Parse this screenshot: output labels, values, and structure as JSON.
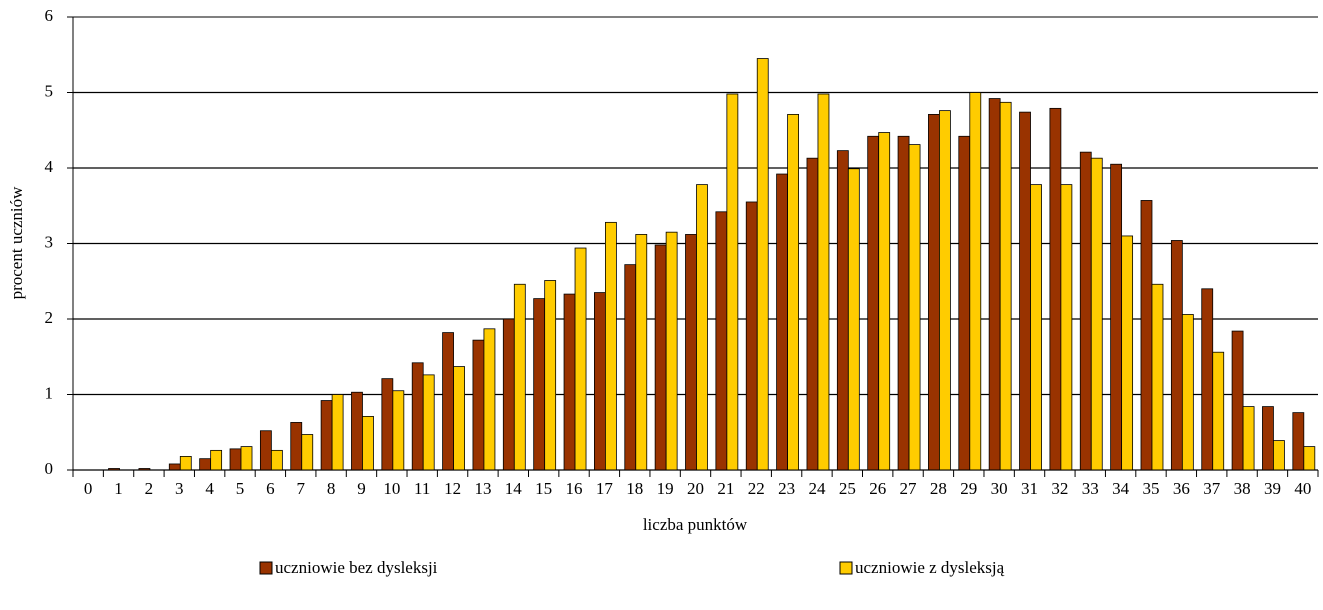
{
  "chart_data": {
    "type": "bar",
    "x_label": "liczba punktów",
    "y_label": "procent uczniów",
    "categories": [
      "0",
      "1",
      "2",
      "3",
      "4",
      "5",
      "6",
      "7",
      "8",
      "9",
      "10",
      "11",
      "12",
      "13",
      "14",
      "15",
      "16",
      "17",
      "18",
      "19",
      "20",
      "21",
      "22",
      "23",
      "24",
      "25",
      "26",
      "27",
      "28",
      "29",
      "30",
      "31",
      "32",
      "33",
      "34",
      "35",
      "36",
      "37",
      "38",
      "39",
      "40"
    ],
    "series": [
      {
        "name": "uczniowie bez dysleksji",
        "color": "#993300",
        "values": [
          0,
          0.02,
          0.02,
          0.08,
          0.15,
          0.28,
          0.52,
          0.63,
          0.92,
          1.03,
          1.21,
          1.42,
          1.82,
          1.72,
          2.0,
          2.27,
          2.33,
          2.35,
          2.72,
          2.98,
          3.12,
          3.42,
          3.55,
          3.92,
          4.13,
          4.23,
          4.42,
          4.42,
          4.71,
          4.42,
          4.92,
          4.74,
          4.79,
          4.21,
          4.05,
          3.57,
          3.04,
          2.4,
          1.84,
          0.84,
          0.76
        ]
      },
      {
        "name": "uczniowie z dysleksją",
        "color": "#ffcc00",
        "values": [
          0,
          0,
          0,
          0.18,
          0.26,
          0.31,
          0.26,
          0.47,
          1.0,
          0.71,
          1.05,
          1.26,
          1.37,
          1.87,
          2.46,
          2.51,
          2.94,
          3.28,
          3.12,
          3.15,
          3.78,
          4.98,
          5.45,
          4.71,
          4.98,
          3.99,
          4.47,
          4.31,
          4.76,
          5.0,
          4.87,
          3.78,
          3.78,
          4.13,
          3.1,
          2.46,
          2.06,
          1.56,
          0.84,
          0.39,
          0.31
        ]
      }
    ],
    "ylim": [
      0,
      6
    ],
    "yticks": [
      0,
      1,
      2,
      3,
      4,
      5,
      6
    ],
    "grid": true
  }
}
